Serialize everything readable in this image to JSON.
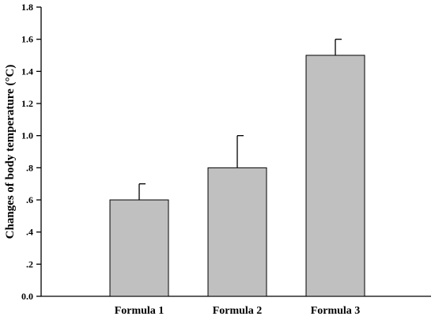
{
  "chart_data": {
    "type": "bar",
    "title": "",
    "xlabel": "",
    "ylabel": "Changes of body temperature (°C)",
    "categories": [
      "Formula 1",
      "Formula 2",
      "Formula 3"
    ],
    "values": [
      0.6,
      0.8,
      1.5
    ],
    "error_plus": [
      0.1,
      0.2,
      0.1
    ],
    "ylim": [
      0.0,
      1.8
    ],
    "yticks": [
      0.0,
      0.2,
      0.4,
      0.6,
      0.8,
      1.0,
      1.2,
      1.4,
      1.6,
      1.8
    ],
    "ytick_labels": [
      "0.0",
      ".2",
      ".4",
      ".6",
      ".8",
      "1.0",
      "1.2",
      "1.4",
      "1.6",
      "1.8"
    ],
    "grid": false,
    "legend": "none",
    "bar_color": "#c0c0c0",
    "edge_color": "#000000"
  }
}
